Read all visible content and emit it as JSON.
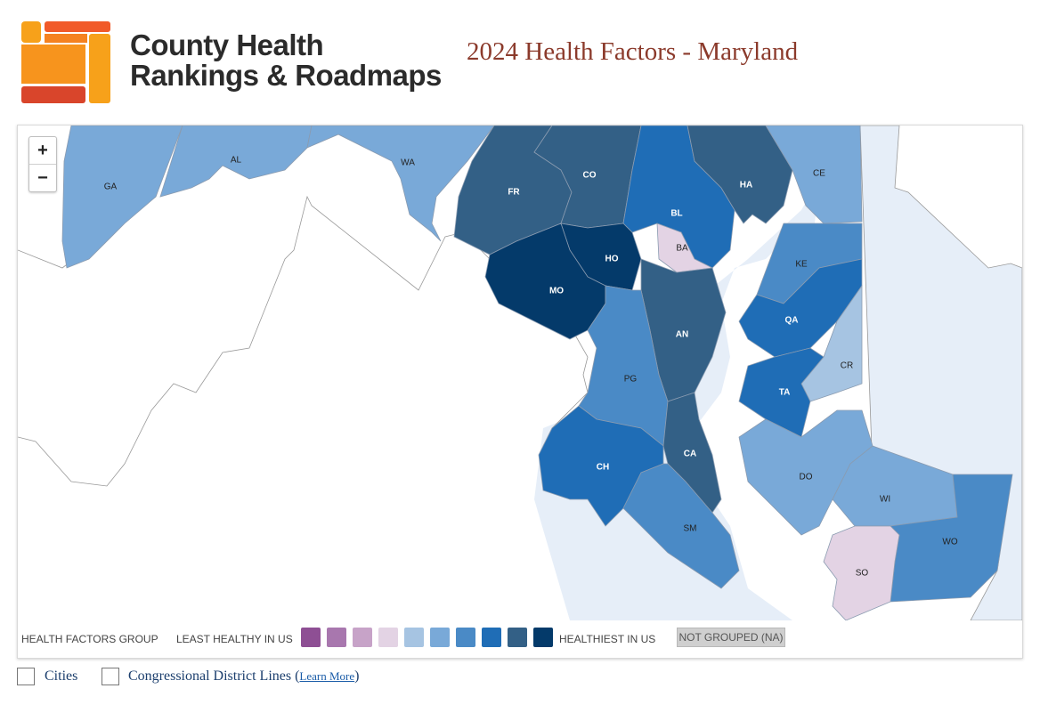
{
  "header": {
    "brand_line1": "County Health",
    "brand_line2": "Rankings & Roadmaps",
    "title": "2024 Health Factors - Maryland"
  },
  "map": {
    "zoom_in": "+",
    "zoom_out": "−",
    "counties": [
      {
        "abbr": "GA",
        "group": 6
      },
      {
        "abbr": "AL",
        "group": 6
      },
      {
        "abbr": "WA",
        "group": 6
      },
      {
        "abbr": "FR",
        "group": 9
      },
      {
        "abbr": "CO",
        "group": 9
      },
      {
        "abbr": "BL",
        "group": 8
      },
      {
        "abbr": "HA",
        "group": 9
      },
      {
        "abbr": "CE",
        "group": 6
      },
      {
        "abbr": "BA",
        "group": 4
      },
      {
        "abbr": "HO",
        "group": 10
      },
      {
        "abbr": "MO",
        "group": 10
      },
      {
        "abbr": "KE",
        "group": 7
      },
      {
        "abbr": "AN",
        "group": 9
      },
      {
        "abbr": "QA",
        "group": 8
      },
      {
        "abbr": "PG",
        "group": 7
      },
      {
        "abbr": "CR",
        "group": 5
      },
      {
        "abbr": "TA",
        "group": 8
      },
      {
        "abbr": "CA",
        "group": 9
      },
      {
        "abbr": "CH",
        "group": 8
      },
      {
        "abbr": "DO",
        "group": 6
      },
      {
        "abbr": "WI",
        "group": 6
      },
      {
        "abbr": "SM",
        "group": 7
      },
      {
        "abbr": "WO",
        "group": 7
      },
      {
        "abbr": "SO",
        "group": 4
      }
    ]
  },
  "legend": {
    "label": "HEALTH FACTORS GROUP",
    "least": "LEAST HEALTHY IN US",
    "healthiest": "HEALTHIEST IN US",
    "not_grouped": "NOT GROUPED (NA)",
    "colors": [
      "#8e4f94",
      "#a877ae",
      "#c7a3c8",
      "#e3d3e4",
      "#a6c4e2",
      "#79a9d8",
      "#4a8ac6",
      "#1f6db6",
      "#336086",
      "#043a6a"
    ]
  },
  "toggles": {
    "cities": "Cities",
    "districts": "Congressional District Lines",
    "learn_more": "Learn More"
  }
}
